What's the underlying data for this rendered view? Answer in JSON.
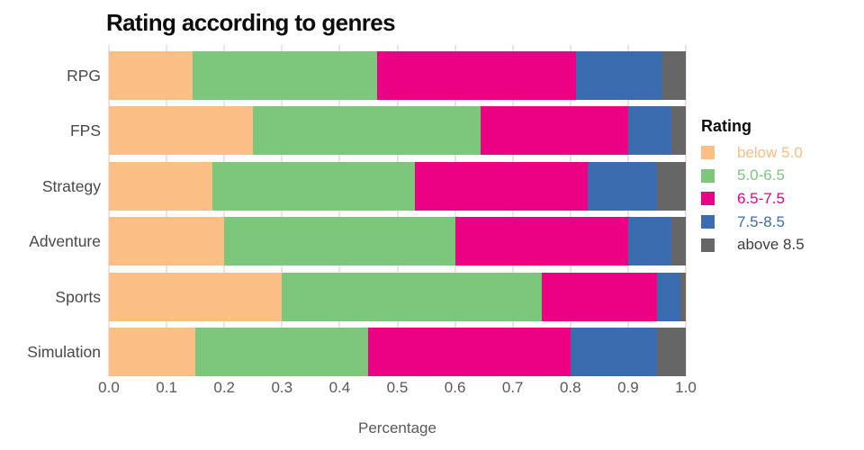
{
  "chart_data": {
    "type": "bar",
    "subtype": "horizontal-stacked",
    "title": "Rating according to genres",
    "xlabel": "Percentage",
    "ylabel": "",
    "xlim": [
      0,
      1
    ],
    "grid": true,
    "x_ticks": [
      "0.0",
      "0.1",
      "0.2",
      "0.3",
      "0.4",
      "0.5",
      "0.6",
      "0.7",
      "0.8",
      "0.9",
      "1.0"
    ],
    "categories": [
      "RPG",
      "FPS",
      "Strategy",
      "Adventure",
      "Sports",
      "Simulation"
    ],
    "series": [
      {
        "name": "below 5.0",
        "color": "#FBBE85",
        "values": [
          0.145,
          0.25,
          0.18,
          0.2,
          0.3,
          0.15
        ]
      },
      {
        "name": "5.0-6.5",
        "color": "#7CC77B",
        "values": [
          0.32,
          0.395,
          0.35,
          0.4,
          0.45,
          0.3
        ]
      },
      {
        "name": "6.5-7.5",
        "color": "#EC0084",
        "values": [
          0.345,
          0.255,
          0.3,
          0.3,
          0.2,
          0.35
        ]
      },
      {
        "name": "7.5-8.5",
        "color": "#3B6CB0",
        "values": [
          0.15,
          0.075,
          0.12,
          0.075,
          0.04,
          0.15
        ]
      },
      {
        "name": "above 8.5",
        "color": "#666666",
        "values": [
          0.04,
          0.025,
          0.05,
          0.025,
          0.01,
          0.05
        ]
      }
    ],
    "legend": {
      "title": "Rating",
      "position": "right",
      "items": [
        {
          "label": "below 5.0",
          "color": "#FBBE85",
          "label_color": "#FBBE85"
        },
        {
          "label": "5.0-6.5",
          "color": "#7CC77B",
          "label_color": "#7CC77B"
        },
        {
          "label": "6.5-7.5",
          "color": "#EC0084",
          "label_color": "#EC0084"
        },
        {
          "label": "7.5-8.5",
          "color": "#3B6CB0",
          "label_color": "#3B6CB0"
        },
        {
          "label": "above 8.5",
          "color": "#666666",
          "label_color": "#3F3F3F"
        }
      ]
    },
    "gridline_color": "#f6dee2"
  }
}
